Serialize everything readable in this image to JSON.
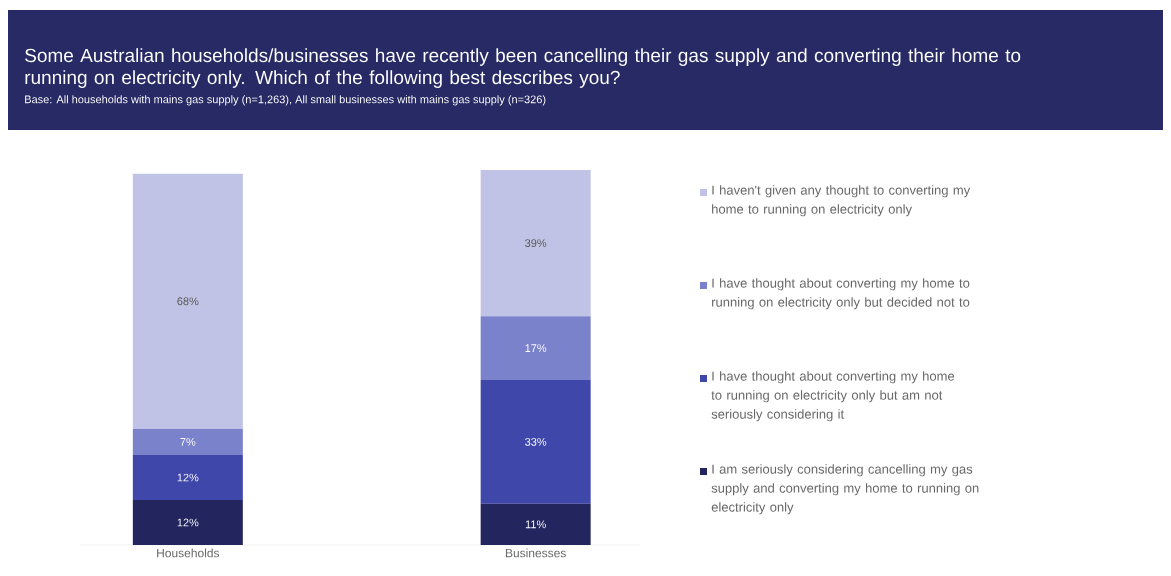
{
  "chart_data": {
    "type": "bar",
    "stacked": true,
    "title": "Some Australian households/businesses have recently been cancelling their gas supply and converting their home to running on electricity only. Which of the following best describes you?",
    "subtitle": "Base: All households with mains gas supply (n=1,263), All small businesses with mains gas supply (n=326)",
    "categories": [
      "Households",
      "Businesses"
    ],
    "legend": "right",
    "series": [
      {
        "name": "I am seriously considering cancelling my gas supply and converting my home to running on electricity only",
        "color": "#22255e",
        "values": [
          12,
          11
        ],
        "value_labels": [
          "12%",
          "11%"
        ]
      },
      {
        "name": "I have thought about converting my home to running on electricity only but am not seriously considering it",
        "color": "#3f47ab",
        "values": [
          12,
          33
        ],
        "value_labels": [
          "12%",
          "33%"
        ]
      },
      {
        "name": "I have thought about converting my home to running on electricity only but decided not to",
        "color": "#7b82cc",
        "values": [
          7,
          17
        ],
        "value_labels": [
          "7%",
          "17%"
        ]
      },
      {
        "name": "I haven't given any thought to converting my home to running on electricity only",
        "color": "#c0c3e5",
        "values": [
          68,
          39
        ],
        "value_labels": [
          "68%",
          "39%"
        ]
      }
    ]
  }
}
